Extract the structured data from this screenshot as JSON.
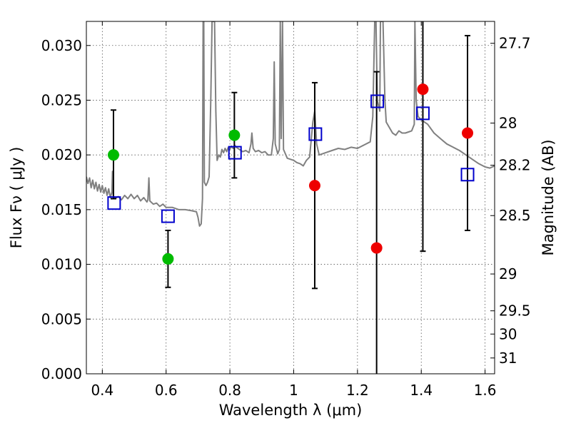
{
  "chart_data": {
    "type": "scatter",
    "xlabel": "Wavelength  λ (μm)",
    "ylabel": "Flux  Fν  ( μJy )",
    "y2label": "Magnitude (AB)",
    "xlim": [
      0.35,
      1.63
    ],
    "ylim": [
      0.0,
      0.0322
    ],
    "grid": true,
    "x_ticks": [
      0.4,
      0.6,
      0.8,
      1.0,
      1.2,
      1.4,
      1.6
    ],
    "x_tick_labels": [
      "0.4",
      "0.6",
      "0.8",
      "1",
      "1.2",
      "1.4",
      "1.6"
    ],
    "y_ticks": [
      0.0,
      0.005,
      0.01,
      0.015,
      0.02,
      0.025,
      0.03
    ],
    "y_tick_labels": [
      "0.000",
      "0.005",
      "0.010",
      "0.015",
      "0.020",
      "0.025",
      "0.030"
    ],
    "mag_ticks": [
      "27.7",
      "28",
      "28.2",
      "28.5",
      "29",
      "29.5",
      "30",
      "31"
    ],
    "colors": {
      "spectrum": "#808080",
      "green": "#00bb00",
      "red": "#ee0000",
      "model": "#0000cc",
      "errorbar": "#000000"
    },
    "observed_points": [
      {
        "x": 0.435,
        "y": 0.02,
        "yerr_low": 0.016,
        "yerr_high": 0.0241,
        "color": "green"
      },
      {
        "x": 0.606,
        "y": 0.0105,
        "yerr_low": 0.0079,
        "yerr_high": 0.0131,
        "color": "green"
      },
      {
        "x": 0.814,
        "y": 0.0218,
        "yerr_low": 0.0179,
        "yerr_high": 0.0257,
        "color": "green"
      },
      {
        "x": 1.066,
        "y": 0.0172,
        "yerr_low": 0.0078,
        "yerr_high": 0.0266,
        "color": "red"
      },
      {
        "x": 1.26,
        "y": 0.0115,
        "yerr_low": 0.0,
        "yerr_high": 0.0276,
        "color": "red"
      },
      {
        "x": 1.405,
        "y": 0.026,
        "yerr_low": 0.0112,
        "yerr_high": 0.0322,
        "color": "red"
      },
      {
        "x": 1.545,
        "y": 0.022,
        "yerr_low": 0.0131,
        "yerr_high": 0.0309,
        "color": "red"
      }
    ],
    "model_points": [
      {
        "x": 0.437,
        "y": 0.0156
      },
      {
        "x": 0.606,
        "y": 0.0144
      },
      {
        "x": 0.816,
        "y": 0.0202
      },
      {
        "x": 1.068,
        "y": 0.0219
      },
      {
        "x": 1.262,
        "y": 0.0249
      },
      {
        "x": 1.405,
        "y": 0.0238
      },
      {
        "x": 1.545,
        "y": 0.0182
      }
    ],
    "spectrum": [
      [
        0.35,
        0.018
      ],
      [
        0.355,
        0.0174
      ],
      [
        0.36,
        0.0179
      ],
      [
        0.365,
        0.017
      ],
      [
        0.37,
        0.0177
      ],
      [
        0.375,
        0.0169
      ],
      [
        0.38,
        0.0175
      ],
      [
        0.385,
        0.0167
      ],
      [
        0.39,
        0.0173
      ],
      [
        0.395,
        0.0166
      ],
      [
        0.4,
        0.0172
      ],
      [
        0.405,
        0.0165
      ],
      [
        0.41,
        0.017
      ],
      [
        0.415,
        0.0163
      ],
      [
        0.42,
        0.0169
      ],
      [
        0.425,
        0.0161
      ],
      [
        0.43,
        0.0166
      ],
      [
        0.432,
        0.0185
      ],
      [
        0.434,
        0.0163
      ],
      [
        0.44,
        0.016
      ],
      [
        0.45,
        0.0162
      ],
      [
        0.46,
        0.0159
      ],
      [
        0.47,
        0.0163
      ],
      [
        0.48,
        0.016
      ],
      [
        0.49,
        0.0164
      ],
      [
        0.5,
        0.016
      ],
      [
        0.51,
        0.0163
      ],
      [
        0.52,
        0.0158
      ],
      [
        0.53,
        0.0161
      ],
      [
        0.54,
        0.0157
      ],
      [
        0.543,
        0.0159
      ],
      [
        0.546,
        0.0179
      ],
      [
        0.549,
        0.0158
      ],
      [
        0.56,
        0.0155
      ],
      [
        0.57,
        0.0156
      ],
      [
        0.58,
        0.0153
      ],
      [
        0.59,
        0.0155
      ],
      [
        0.6,
        0.0152
      ],
      [
        0.62,
        0.0152
      ],
      [
        0.64,
        0.015
      ],
      [
        0.66,
        0.015
      ],
      [
        0.68,
        0.0149
      ],
      [
        0.695,
        0.0148
      ],
      [
        0.7,
        0.0143
      ],
      [
        0.705,
        0.0135
      ],
      [
        0.71,
        0.0137
      ],
      [
        0.714,
        0.016
      ],
      [
        0.716,
        0.0322
      ],
      [
        0.718,
        0.0322
      ],
      [
        0.72,
        0.0175
      ],
      [
        0.725,
        0.0172
      ],
      [
        0.73,
        0.0175
      ],
      [
        0.735,
        0.018
      ],
      [
        0.74,
        0.025
      ],
      [
        0.744,
        0.0322
      ],
      [
        0.752,
        0.0322
      ],
      [
        0.756,
        0.024
      ],
      [
        0.76,
        0.0195
      ],
      [
        0.765,
        0.02
      ],
      [
        0.77,
        0.0198
      ],
      [
        0.775,
        0.0205
      ],
      [
        0.78,
        0.0202
      ],
      [
        0.785,
        0.0206
      ],
      [
        0.79,
        0.0203
      ],
      [
        0.795,
        0.0207
      ],
      [
        0.8,
        0.0205
      ],
      [
        0.805,
        0.0208
      ],
      [
        0.81,
        0.0206
      ],
      [
        0.815,
        0.0209
      ],
      [
        0.82,
        0.0207
      ],
      [
        0.83,
        0.0205
      ],
      [
        0.84,
        0.0203
      ],
      [
        0.85,
        0.0204
      ],
      [
        0.86,
        0.0202
      ],
      [
        0.866,
        0.021
      ],
      [
        0.869,
        0.022
      ],
      [
        0.873,
        0.0206
      ],
      [
        0.88,
        0.0203
      ],
      [
        0.89,
        0.0204
      ],
      [
        0.9,
        0.0202
      ],
      [
        0.91,
        0.0203
      ],
      [
        0.92,
        0.02
      ],
      [
        0.93,
        0.02
      ],
      [
        0.936,
        0.0215
      ],
      [
        0.939,
        0.0285
      ],
      [
        0.942,
        0.021
      ],
      [
        0.95,
        0.0201
      ],
      [
        0.955,
        0.0205
      ],
      [
        0.958,
        0.0322
      ],
      [
        0.961,
        0.0215
      ],
      [
        0.965,
        0.0322
      ],
      [
        0.968,
        0.0205
      ],
      [
        0.98,
        0.0197
      ],
      [
        1.0,
        0.0195
      ],
      [
        1.01,
        0.0193
      ],
      [
        1.02,
        0.0192
      ],
      [
        1.03,
        0.019
      ],
      [
        1.04,
        0.0195
      ],
      [
        1.05,
        0.0198
      ],
      [
        1.06,
        0.023
      ],
      [
        1.066,
        0.024
      ],
      [
        1.072,
        0.021
      ],
      [
        1.08,
        0.02
      ],
      [
        1.1,
        0.0202
      ],
      [
        1.12,
        0.0204
      ],
      [
        1.14,
        0.0206
      ],
      [
        1.16,
        0.0205
      ],
      [
        1.18,
        0.0207
      ],
      [
        1.2,
        0.0206
      ],
      [
        1.22,
        0.0209
      ],
      [
        1.24,
        0.0212
      ],
      [
        1.248,
        0.0235
      ],
      [
        1.254,
        0.0322
      ],
      [
        1.258,
        0.0322
      ],
      [
        1.262,
        0.025
      ],
      [
        1.27,
        0.024
      ],
      [
        1.272,
        0.0322
      ],
      [
        1.28,
        0.0322
      ],
      [
        1.286,
        0.025
      ],
      [
        1.29,
        0.023
      ],
      [
        1.3,
        0.0225
      ],
      [
        1.31,
        0.022
      ],
      [
        1.32,
        0.0218
      ],
      [
        1.33,
        0.0222
      ],
      [
        1.34,
        0.022
      ],
      [
        1.35,
        0.022
      ],
      [
        1.36,
        0.0221
      ],
      [
        1.37,
        0.0222
      ],
      [
        1.378,
        0.0228
      ],
      [
        1.38,
        0.0322
      ],
      [
        1.384,
        0.025
      ],
      [
        1.39,
        0.0235
      ],
      [
        1.4,
        0.0232
      ],
      [
        1.42,
        0.0228
      ],
      [
        1.44,
        0.022
      ],
      [
        1.46,
        0.0215
      ],
      [
        1.48,
        0.021
      ],
      [
        1.5,
        0.0207
      ],
      [
        1.52,
        0.0204
      ],
      [
        1.54,
        0.02
      ],
      [
        1.56,
        0.0196
      ],
      [
        1.58,
        0.0192
      ],
      [
        1.6,
        0.0189
      ],
      [
        1.615,
        0.0188
      ],
      [
        1.63,
        0.019
      ]
    ]
  }
}
